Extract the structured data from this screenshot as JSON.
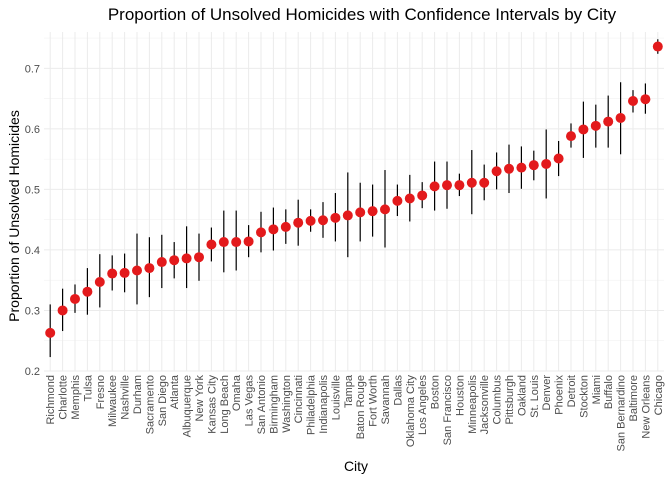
{
  "chart_data": {
    "type": "scatter",
    "title": "Proportion of Unsolved Homicides with Confidence Intervals by City",
    "xlabel": "City",
    "ylabel": "Proportion of Unsolved Homicides",
    "ylim": [
      0.2,
      0.76
    ],
    "yticks": [
      "0.2",
      "0.3",
      "0.4",
      "0.5",
      "0.6",
      "0.7"
    ],
    "grid": true,
    "legend": "none",
    "point_color": "#e31a1c",
    "errorbar_color": "#000000",
    "categories": [
      "Richmond",
      "Charlotte",
      "Memphis",
      "Tulsa",
      "Fresno",
      "Milwaukee",
      "Nashville",
      "Durham",
      "Sacramento",
      "San Diego",
      "Atlanta",
      "Albuquerque",
      "New York",
      "Kansas City",
      "Long Beach",
      "Omaha",
      "Las Vegas",
      "San Antonio",
      "Birmingham",
      "Washington",
      "Cincinnati",
      "Philadelphia",
      "Indianapolis",
      "Louisville",
      "Tampa",
      "Baton Rouge",
      "Fort Worth",
      "Savannah",
      "Dallas",
      "Oklahoma City",
      "Los Angeles",
      "Boston",
      "San Francisco",
      "Houston",
      "Minneapolis",
      "Jacksonville",
      "Columbus",
      "Pittsburgh",
      "Oakland",
      "St. Louis",
      "Denver",
      "Phoenix",
      "Detroit",
      "Stockton",
      "Miami",
      "Buffalo",
      "San Bernardino",
      "Baltimore",
      "New Orleans",
      "Chicago"
    ],
    "series": [
      {
        "values": [
          0.263,
          0.3,
          0.319,
          0.331,
          0.347,
          0.361,
          0.362,
          0.366,
          0.37,
          0.38,
          0.383,
          0.386,
          0.388,
          0.409,
          0.413,
          0.413,
          0.414,
          0.429,
          0.434,
          0.438,
          0.445,
          0.448,
          0.449,
          0.453,
          0.457,
          0.462,
          0.464,
          0.467,
          0.481,
          0.485,
          0.49,
          0.505,
          0.507,
          0.507,
          0.511,
          0.511,
          0.53,
          0.534,
          0.536,
          0.54,
          0.542,
          0.551,
          0.588,
          0.599,
          0.605,
          0.612,
          0.618,
          0.646,
          0.649,
          0.736
        ],
        "lower": [
          0.223,
          0.266,
          0.296,
          0.293,
          0.305,
          0.333,
          0.33,
          0.31,
          0.322,
          0.337,
          0.353,
          0.337,
          0.349,
          0.381,
          0.363,
          0.366,
          0.388,
          0.396,
          0.399,
          0.41,
          0.407,
          0.43,
          0.42,
          0.414,
          0.388,
          0.414,
          0.422,
          0.404,
          0.456,
          0.447,
          0.469,
          0.465,
          0.468,
          0.489,
          0.459,
          0.482,
          0.5,
          0.494,
          0.501,
          0.515,
          0.485,
          0.522,
          0.569,
          0.552,
          0.569,
          0.569,
          0.558,
          0.627,
          0.625,
          0.724
        ],
        "upper": [
          0.31,
          0.336,
          0.343,
          0.37,
          0.393,
          0.391,
          0.394,
          0.427,
          0.421,
          0.425,
          0.413,
          0.439,
          0.427,
          0.437,
          0.465,
          0.465,
          0.441,
          0.463,
          0.47,
          0.467,
          0.483,
          0.467,
          0.479,
          0.494,
          0.528,
          0.511,
          0.508,
          0.532,
          0.508,
          0.524,
          0.512,
          0.546,
          0.546,
          0.526,
          0.565,
          0.541,
          0.561,
          0.574,
          0.571,
          0.564,
          0.599,
          0.58,
          0.609,
          0.645,
          0.64,
          0.655,
          0.677,
          0.664,
          0.675,
          0.748
        ]
      }
    ]
  }
}
